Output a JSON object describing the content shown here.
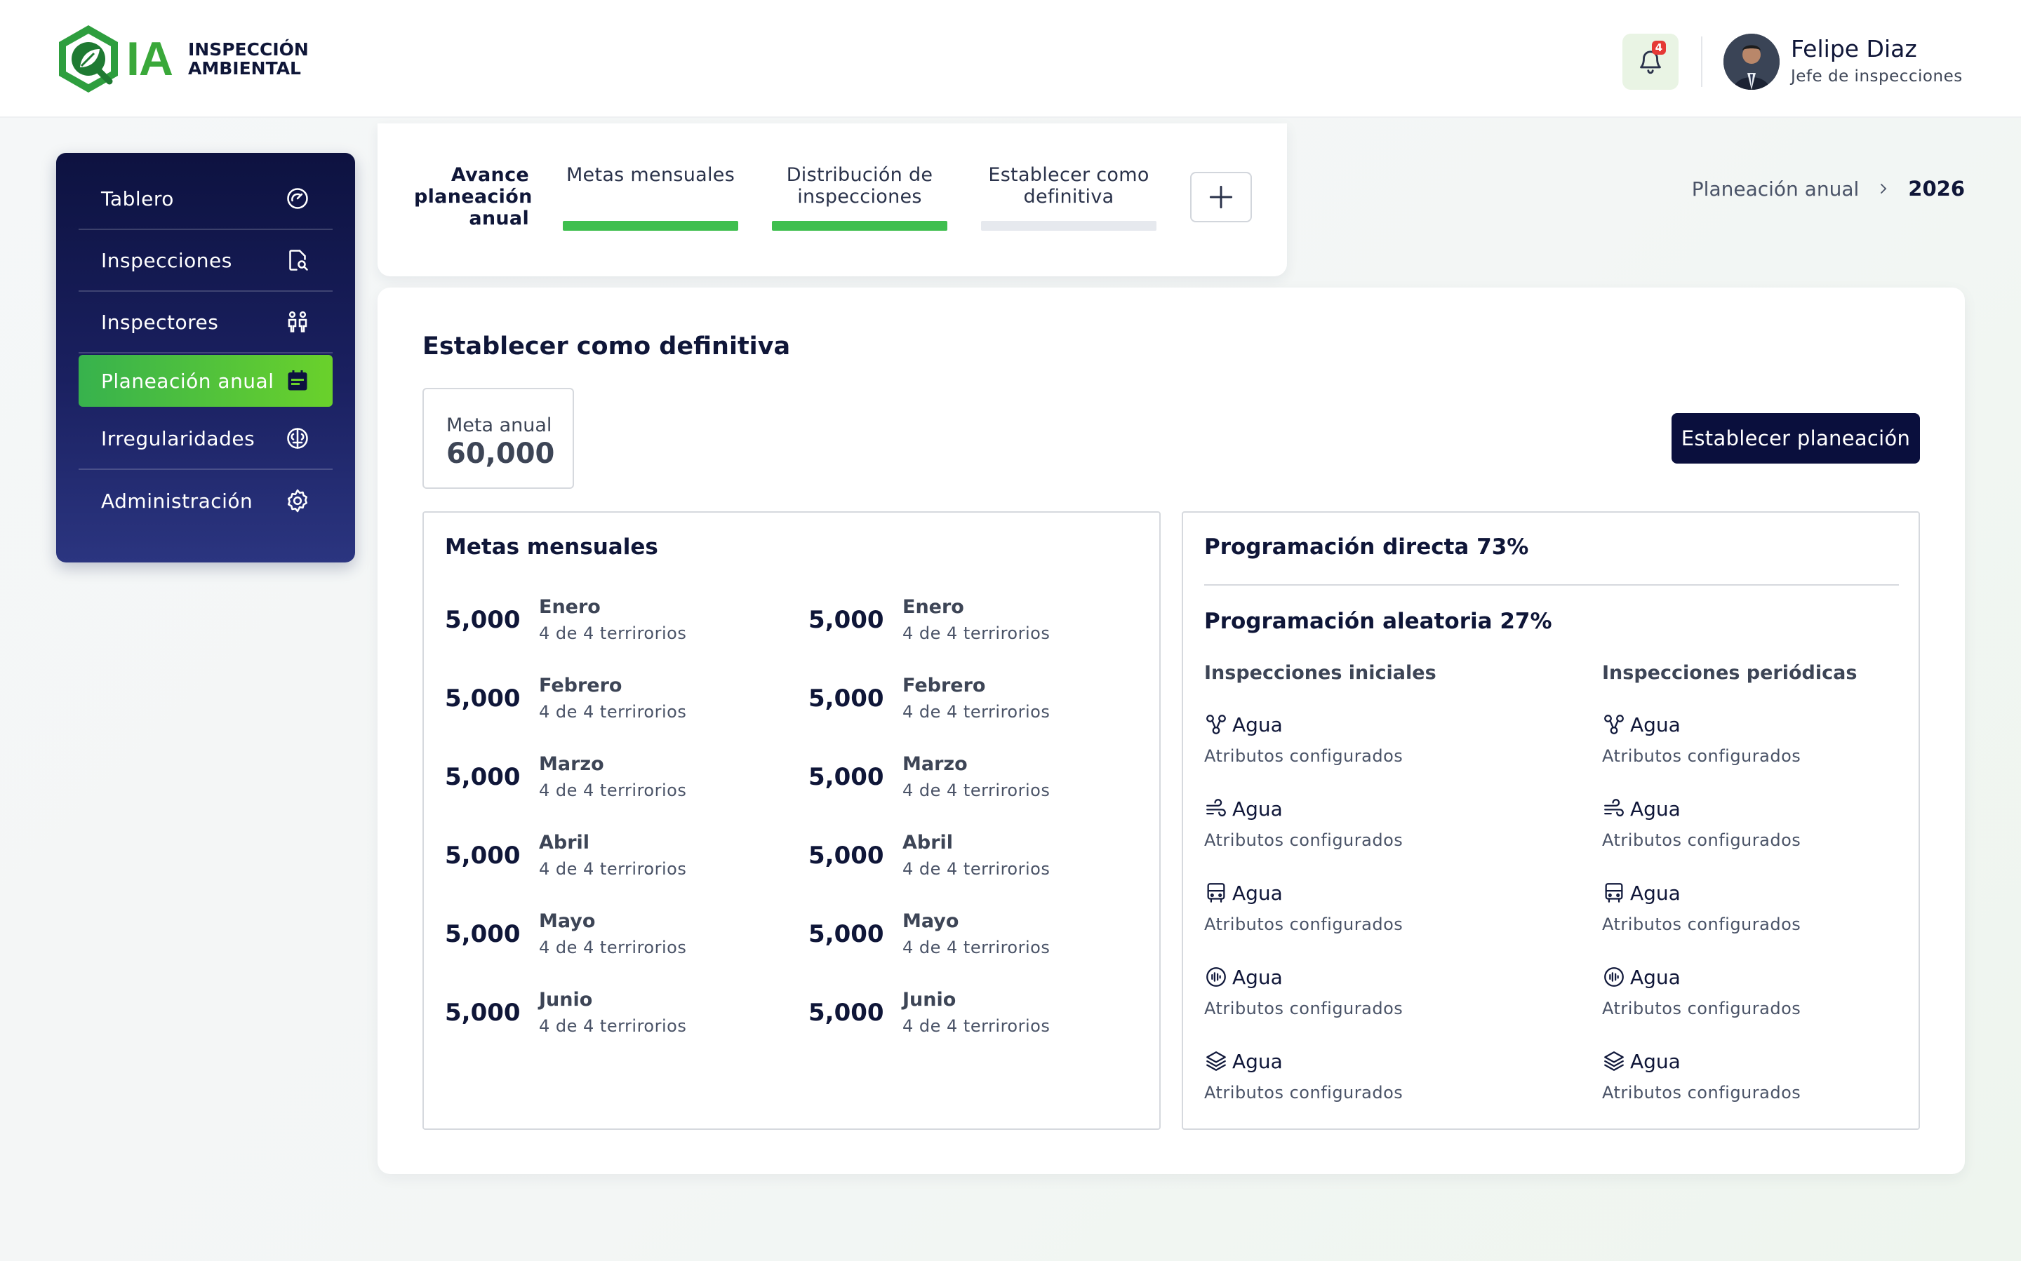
{
  "brand": {
    "mark": "IA",
    "line1": "INSPECCIÓN",
    "line2": "AMBIENTAL"
  },
  "notifications": {
    "count": "4"
  },
  "user": {
    "name": "Felipe Diaz",
    "role": "Jefe de inspecciones"
  },
  "sidebar": {
    "items": [
      {
        "label": "Tablero",
        "icon": "dashboard-gauge-icon"
      },
      {
        "label": "Inspecciones",
        "icon": "document-search-icon"
      },
      {
        "label": "Inspectores",
        "icon": "people-icon"
      },
      {
        "label": "Planeación anual",
        "icon": "calendar-icon",
        "active": true
      },
      {
        "label": "Irregularidades",
        "icon": "brain-icon"
      },
      {
        "label": "Administración",
        "icon": "gear-icon"
      }
    ]
  },
  "tabs": [
    {
      "label": "Avance planeación anual",
      "status": "title"
    },
    {
      "label": "Metas mensuales",
      "status": "complete"
    },
    {
      "label": "Distribución de inspecciones",
      "status": "complete"
    },
    {
      "label": "Establecer como definitiva",
      "status": "pending"
    }
  ],
  "breadcrumb": {
    "parent": "Planeación anual",
    "current": "2026"
  },
  "main": {
    "title": "Establecer como definitiva",
    "meta_label": "Meta anual",
    "meta_value": "60,000",
    "primary_button": "Establecer planeación"
  },
  "monthly": {
    "title": "Metas mensuales",
    "left": [
      {
        "value": "5,000",
        "month": "Enero",
        "sub": "4 de 4 terrirorios"
      },
      {
        "value": "5,000",
        "month": "Febrero",
        "sub": "4 de 4 terrirorios"
      },
      {
        "value": "5,000",
        "month": "Marzo",
        "sub": "4 de 4 terrirorios"
      },
      {
        "value": "5,000",
        "month": "Abril",
        "sub": "4 de 4 terrirorios"
      },
      {
        "value": "5,000",
        "month": "Mayo",
        "sub": "4 de 4 terrirorios"
      },
      {
        "value": "5,000",
        "month": "Junio",
        "sub": "4 de 4 terrirorios"
      }
    ],
    "right": [
      {
        "value": "5,000",
        "month": "Enero",
        "sub": "4 de 4 terrirorios"
      },
      {
        "value": "5,000",
        "month": "Febrero",
        "sub": "4 de 4 terrirorios"
      },
      {
        "value": "5,000",
        "month": "Marzo",
        "sub": "4 de 4 terrirorios"
      },
      {
        "value": "5,000",
        "month": "Abril",
        "sub": "4 de 4 terrirorios"
      },
      {
        "value": "5,000",
        "month": "Mayo",
        "sub": "4 de 4 terrirorios"
      },
      {
        "value": "5,000",
        "month": "Junio",
        "sub": "4 de 4 terrirorios"
      }
    ]
  },
  "programming": {
    "direct": "Programación directa 73%",
    "random": "Programación aleatoria 27%",
    "initial": {
      "title": "Inspecciones iniciales",
      "items": [
        {
          "icon": "molecule-icon",
          "label": "Agua",
          "sub": "Atributos configurados"
        },
        {
          "icon": "wind-icon",
          "label": "Agua",
          "sub": "Atributos configurados"
        },
        {
          "icon": "bus-icon",
          "label": "Agua",
          "sub": "Atributos configurados"
        },
        {
          "icon": "soundwave-icon",
          "label": "Agua",
          "sub": "Atributos configurados"
        },
        {
          "icon": "layers-icon",
          "label": "Agua",
          "sub": "Atributos configurados"
        }
      ]
    },
    "periodic": {
      "title": "Inspecciones periódicas",
      "items": [
        {
          "icon": "molecule-icon",
          "label": "Agua",
          "sub": "Atributos configurados"
        },
        {
          "icon": "wind-icon",
          "label": "Agua",
          "sub": "Atributos configurados"
        },
        {
          "icon": "bus-icon",
          "label": "Agua",
          "sub": "Atributos configurados"
        },
        {
          "icon": "soundwave-icon",
          "label": "Agua",
          "sub": "Atributos configurados"
        },
        {
          "icon": "layers-icon",
          "label": "Agua",
          "sub": "Atributos configurados"
        }
      ]
    }
  },
  "colors": {
    "navy": "#0a0f3d",
    "green": "#3fbf4f",
    "pending": "#e6e9ee"
  }
}
